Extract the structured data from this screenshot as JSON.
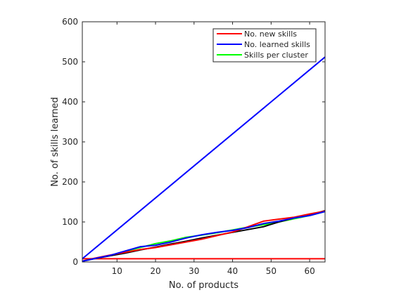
{
  "chart_data": {
    "type": "line",
    "xlabel": "No. of products",
    "ylabel": "No. of skills learned",
    "xlim": [
      1,
      64
    ],
    "ylim": [
      0,
      600
    ],
    "xticks": [
      10,
      20,
      30,
      40,
      50,
      60
    ],
    "yticks": [
      0,
      100,
      200,
      300,
      400,
      500,
      600
    ],
    "grid": false,
    "legend_position": "top-right",
    "legend": [
      {
        "label": "No. new skills",
        "color": "#ff0000"
      },
      {
        "label": "No. learned skills",
        "color": "#0000ff"
      },
      {
        "label": "Skills per cluster",
        "color": "#00ff00"
      }
    ],
    "series": [
      {
        "color": "#ff0000",
        "x": [
          1,
          64
        ],
        "y": [
          8,
          8
        ]
      },
      {
        "color": "#0000ff",
        "x": [
          1,
          64
        ],
        "y": [
          8,
          512
        ]
      },
      {
        "color": "#00ff00",
        "x": [
          1,
          4,
          8,
          12,
          16,
          20,
          24,
          28,
          32,
          36,
          40,
          44,
          48,
          52,
          56,
          60,
          64
        ],
        "y": [
          2,
          8,
          16,
          26,
          36,
          46,
          53,
          62,
          67,
          73,
          80,
          87,
          93,
          100,
          108,
          116,
          126
        ]
      },
      {
        "color": "#000000",
        "x": [
          1,
          4,
          8,
          12,
          16,
          20,
          24,
          28,
          32,
          36,
          40,
          44,
          48,
          52,
          56,
          60,
          64
        ],
        "y": [
          2,
          8,
          15,
          22,
          30,
          37,
          45,
          52,
          60,
          67,
          74,
          81,
          88,
          100,
          110,
          118,
          128
        ]
      },
      {
        "color": "#ff0000",
        "x": [
          1,
          4,
          8,
          12,
          16,
          20,
          24,
          28,
          32,
          36,
          40,
          44,
          48,
          52,
          56,
          60,
          64
        ],
        "y": [
          2,
          9,
          17,
          24,
          31,
          36,
          43,
          50,
          57,
          66,
          75,
          88,
          102,
          107,
          112,
          120,
          127
        ]
      },
      {
        "color": "#0000ff",
        "x": [
          1,
          4,
          8,
          12,
          16,
          20,
          24,
          28,
          32,
          36,
          40,
          44,
          48,
          52,
          56,
          60,
          64
        ],
        "y": [
          2,
          8,
          16,
          27,
          38,
          42,
          50,
          60,
          68,
          74,
          79,
          86,
          96,
          102,
          110,
          116,
          126
        ]
      }
    ]
  }
}
